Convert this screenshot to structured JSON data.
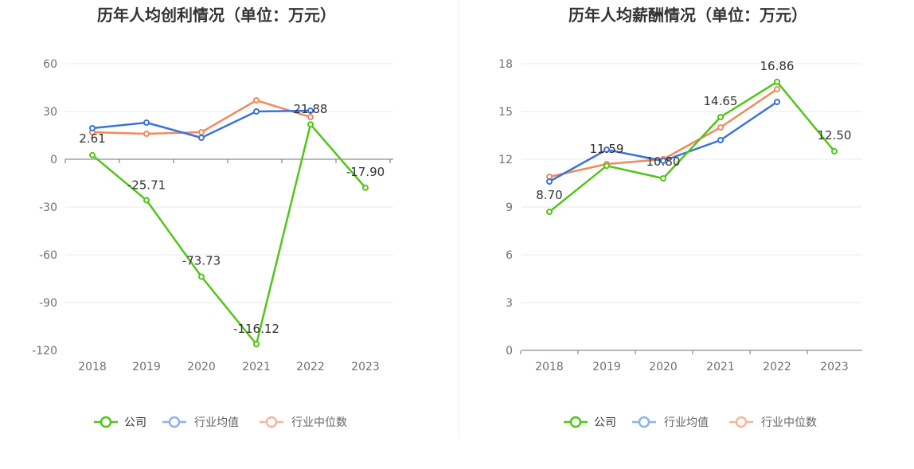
{
  "chart_data": [
    {
      "type": "line",
      "title": "历年人均创利情况（单位：万元）",
      "categories": [
        "2018",
        "2019",
        "2020",
        "2021",
        "2022",
        "2023"
      ],
      "ylim": [
        -120,
        60
      ],
      "yticks": [
        "60",
        "30",
        "0",
        "-30",
        "-60",
        "-90",
        "-120"
      ],
      "grid": true,
      "legend_position": "bottom-center",
      "series": [
        {
          "name": "公司",
          "color": "#52c41a",
          "values": [
            2.61,
            -25.71,
            -73.73,
            -116.12,
            21.88,
            -17.9
          ],
          "labels": [
            "2.61",
            "-25.71",
            "-73.73",
            "-116.12",
            "21.88",
            "-17.90"
          ]
        },
        {
          "name": "行业均值",
          "color": "#3b73d9",
          "values": [
            19.5,
            23,
            13.5,
            30,
            30.5,
            null
          ]
        },
        {
          "name": "行业中位数",
          "color": "#f08a5d",
          "values": [
            17,
            16,
            17,
            37,
            26.5,
            null
          ]
        }
      ]
    },
    {
      "type": "line",
      "title": "历年人均薪酬情况（单位：万元）",
      "categories": [
        "2018",
        "2019",
        "2020",
        "2021",
        "2022",
        "2023"
      ],
      "ylim": [
        0,
        18
      ],
      "yticks": [
        "18",
        "15",
        "12",
        "9",
        "6",
        "3",
        "0"
      ],
      "grid": true,
      "legend_position": "bottom-center",
      "series": [
        {
          "name": "公司",
          "color": "#52c41a",
          "values": [
            8.7,
            11.59,
            10.8,
            14.65,
            16.86,
            12.5
          ],
          "labels": [
            "8.70",
            "11.59",
            "10.80",
            "14.65",
            "16.86",
            "12.50"
          ]
        },
        {
          "name": "行业均值",
          "color": "#3b73d9",
          "values": [
            10.6,
            12.6,
            11.9,
            13.2,
            15.6,
            null
          ]
        },
        {
          "name": "行业中位数",
          "color": "#f08a5d",
          "values": [
            10.9,
            11.7,
            12.0,
            14.0,
            16.4,
            null
          ]
        }
      ]
    }
  ],
  "legend": {
    "items": [
      "公司",
      "行业均值",
      "行业中位数"
    ],
    "colors": [
      "#52c41a",
      "#8fb1ea",
      "#f7b49a"
    ]
  }
}
